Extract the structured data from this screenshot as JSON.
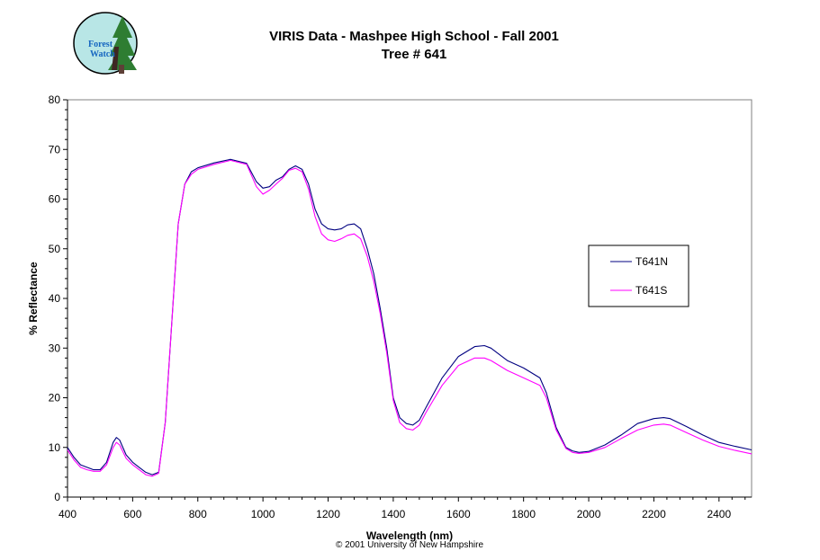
{
  "logo": {
    "line1": "Forest",
    "line2": "Watch"
  },
  "footer": {
    "copyright": "© 2001 University of New Hampshire"
  },
  "colors": {
    "series1": "#000080",
    "series2": "#ff00ff",
    "logo_bg": "#b8e6e6",
    "tree": "#2e7d32"
  },
  "chart_data": {
    "type": "line",
    "title": "VIRIS Data - Mashpee High School - Fall 2001",
    "subtitle": "Tree # 641",
    "xlabel": "Wavelength (nm)",
    "ylabel": "% Reflectance",
    "xlim": [
      400,
      2500
    ],
    "ylim": [
      0,
      80
    ],
    "xticks": [
      400,
      600,
      800,
      1000,
      1200,
      1400,
      1600,
      1800,
      2000,
      2200,
      2400
    ],
    "yticks": [
      0,
      10,
      20,
      30,
      40,
      50,
      60,
      70,
      80
    ],
    "grid": false,
    "legend_position": "right",
    "series": [
      {
        "name": "T641N",
        "x": [
          400,
          420,
          440,
          460,
          480,
          500,
          520,
          540,
          550,
          560,
          580,
          600,
          620,
          640,
          660,
          680,
          700,
          720,
          740,
          760,
          780,
          800,
          850,
          900,
          950,
          980,
          1000,
          1020,
          1040,
          1060,
          1080,
          1100,
          1120,
          1140,
          1160,
          1180,
          1200,
          1220,
          1240,
          1260,
          1280,
          1300,
          1320,
          1340,
          1360,
          1380,
          1400,
          1420,
          1440,
          1460,
          1480,
          1500,
          1550,
          1600,
          1650,
          1680,
          1700,
          1750,
          1800,
          1850,
          1870,
          1900,
          1930,
          1950,
          1970,
          2000,
          2050,
          2100,
          2150,
          2200,
          2230,
          2250,
          2300,
          2350,
          2400,
          2450,
          2500
        ],
        "y": [
          10,
          8,
          6.5,
          6,
          5.5,
          5.5,
          7,
          11,
          12,
          11.5,
          8.5,
          7,
          6,
          5,
          4.5,
          5,
          15,
          35,
          55,
          63,
          65.5,
          66.3,
          67.3,
          68,
          67.2,
          63.5,
          62.2,
          62.5,
          63.8,
          64.5,
          66,
          66.7,
          66,
          63,
          58,
          55,
          54,
          53.8,
          54,
          54.8,
          55,
          54,
          50,
          45,
          38,
          30,
          20,
          16,
          14.8,
          14.5,
          15.5,
          18,
          24,
          28.3,
          30.3,
          30.5,
          30,
          27.5,
          26,
          24,
          21,
          14,
          10,
          9.3,
          9,
          9.2,
          10.5,
          12.5,
          14.8,
          15.8,
          16,
          15.8,
          14.2,
          12.5,
          11,
          10.2,
          9.5
        ]
      },
      {
        "name": "T641S",
        "x": [
          400,
          420,
          440,
          460,
          480,
          500,
          520,
          540,
          550,
          560,
          580,
          600,
          620,
          640,
          660,
          680,
          700,
          720,
          740,
          760,
          780,
          800,
          850,
          900,
          950,
          980,
          1000,
          1020,
          1040,
          1060,
          1080,
          1100,
          1120,
          1140,
          1160,
          1180,
          1200,
          1220,
          1240,
          1260,
          1280,
          1300,
          1320,
          1340,
          1360,
          1380,
          1400,
          1420,
          1440,
          1460,
          1480,
          1500,
          1550,
          1600,
          1650,
          1680,
          1700,
          1750,
          1800,
          1850,
          1870,
          1900,
          1930,
          1950,
          1970,
          2000,
          2050,
          2100,
          2150,
          2200,
          2230,
          2250,
          2300,
          2350,
          2400,
          2450,
          2500
        ],
        "y": [
          9.5,
          7.5,
          6,
          5.5,
          5.2,
          5.2,
          6.5,
          10,
          11,
          10.5,
          7.8,
          6.5,
          5.5,
          4.5,
          4.2,
          4.8,
          15,
          35,
          55,
          63,
          65,
          66,
          67,
          67.8,
          67,
          62.5,
          61,
          61.8,
          63,
          64.2,
          65.8,
          66.2,
          65.5,
          62,
          56.5,
          53,
          51.8,
          51.5,
          52,
          52.7,
          53,
          52,
          48.5,
          43.5,
          37,
          29,
          19.5,
          15,
          13.8,
          13.5,
          14.5,
          17,
          22.5,
          26.5,
          28,
          28,
          27.5,
          25.5,
          24,
          22.5,
          20,
          13.5,
          9.8,
          9,
          8.8,
          9,
          10,
          11.8,
          13.5,
          14.5,
          14.7,
          14.5,
          13,
          11.5,
          10.2,
          9.4,
          8.7
        ]
      }
    ]
  }
}
